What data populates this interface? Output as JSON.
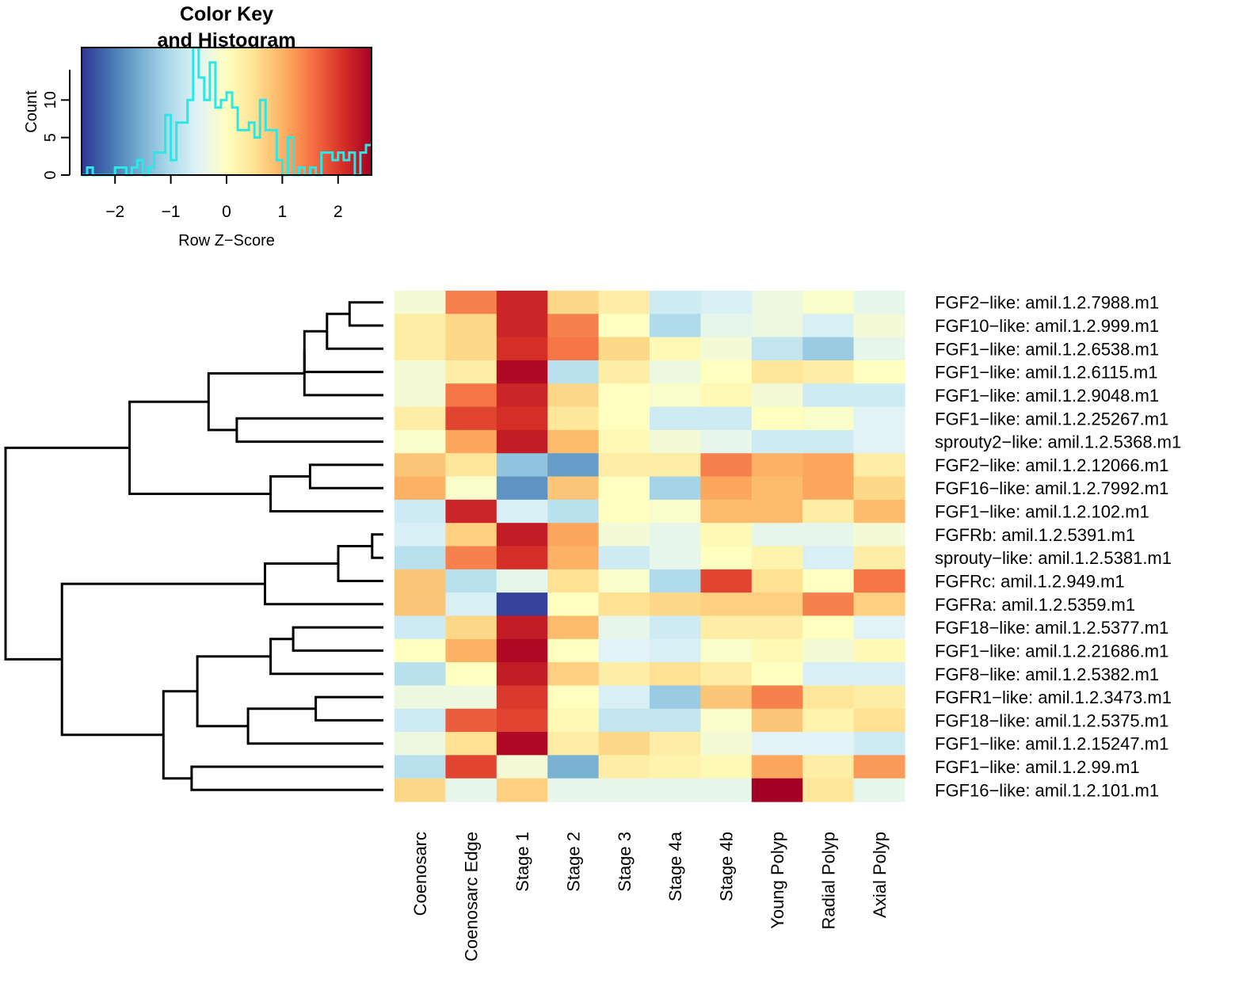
{
  "chart_data": {
    "type": "heatmap",
    "color_key": {
      "title_line1": "Color Key",
      "title_line2": "and Histogram",
      "xlabel": "Row Z−Score",
      "ylabel": "Count",
      "x_range": [
        -2.6,
        2.6
      ],
      "y_range": [
        0,
        17
      ],
      "x_ticks": [
        -2,
        -1,
        0,
        1,
        2
      ],
      "x_tick_labels": [
        "−2",
        "−1",
        "0",
        "1",
        "2"
      ],
      "y_ticks": [
        0,
        5,
        10
      ],
      "y_tick_labels": [
        "0",
        "5",
        "10"
      ],
      "histogram_color": "#2de6e6",
      "histogram": {
        "bin_edges": [
          -2.6,
          -2.5,
          -2.4,
          -2.3,
          -2.2,
          -2.1,
          -2.0,
          -1.9,
          -1.8,
          -1.7,
          -1.6,
          -1.5,
          -1.4,
          -1.3,
          -1.2,
          -1.1,
          -1.0,
          -0.9,
          -0.8,
          -0.7,
          -0.6,
          -0.5,
          -0.4,
          -0.3,
          -0.2,
          -0.1,
          0.0,
          0.1,
          0.2,
          0.3,
          0.4,
          0.5,
          0.6,
          0.7,
          0.8,
          0.9,
          1.0,
          1.1,
          1.2,
          1.3,
          1.4,
          1.5,
          1.6,
          1.7,
          1.8,
          1.9,
          2.0,
          2.1,
          2.2,
          2.3,
          2.4,
          2.5,
          2.6
        ],
        "counts": [
          0,
          1,
          0,
          0,
          0,
          0,
          1,
          1,
          0,
          1,
          2,
          0,
          1,
          3,
          3,
          8,
          2,
          7,
          7,
          10,
          17,
          13,
          10,
          15,
          9,
          10,
          11,
          9,
          6,
          6,
          7,
          5,
          10,
          6,
          6,
          2,
          0,
          5,
          0,
          1,
          0,
          1,
          0,
          3,
          3,
          2,
          3,
          2,
          3,
          0,
          3,
          4
        ]
      }
    },
    "columns": [
      "Coenosarc",
      "Coenosarc Edge",
      "Stage 1",
      "Stage 2",
      "Stage 3",
      "Stage 4a",
      "Stage 4b",
      "Young Polyp",
      "Radial Polyp",
      "Axial Polyp"
    ],
    "rows": [
      "FGF2−like: amil.1.2.7988.m1",
      "FGF10−like: amil.1.2.999.m1",
      "FGF1−like: amil.1.2.6538.m1",
      "FGF1−like: amil.1.2.6115.m1",
      "FGF1−like: amil.1.2.9048.m1",
      "FGF1−like: amil.1.2.25267.m1",
      "sprouty2−like: amil.1.2.5368.m1",
      "FGF2−like: amil.1.2.12066.m1",
      "FGF16−like: amil.1.2.7992.m1",
      "FGF1−like: amil.1.2.102.m1",
      "FGFRb: amil.1.2.5391.m1",
      "sprouty−like: amil.1.2.5381.m1",
      "FGFRc: amil.1.2.949.m1",
      "FGFRa: amil.1.2.5359.m1",
      "FGF18−like: amil.1.2.5377.m1",
      "FGF1−like: amil.1.2.21686.m1",
      "FGF8−like: amil.1.2.5382.m1",
      "FGFR1−like: amil.1.2.3473.m1",
      "FGF18−like: amil.1.2.5375.m1",
      "FGF1−like: amil.1.2.15247.m1",
      "FGF1−like: amil.1.2.99.m1",
      "FGF16−like: amil.1.2.101.m1"
    ],
    "z_scores": [
      [
        -0.2,
        1.4,
        2.2,
        0.6,
        0.3,
        -0.7,
        -0.6,
        -0.3,
        -0.1,
        -0.4
      ],
      [
        0.3,
        0.6,
        2.2,
        1.4,
        0.0,
        -1.0,
        -0.4,
        -0.3,
        -0.6,
        -0.2
      ],
      [
        0.3,
        0.6,
        2.1,
        1.5,
        0.6,
        0.1,
        -0.2,
        -0.8,
        -1.2,
        -0.4
      ],
      [
        -0.2,
        0.3,
        2.5,
        -0.9,
        0.3,
        -0.3,
        0.0,
        0.4,
        0.3,
        0.0
      ],
      [
        -0.2,
        1.5,
        2.2,
        0.6,
        0.0,
        -0.1,
        0.1,
        -0.2,
        -0.7,
        -0.7
      ],
      [
        0.3,
        1.9,
        2.1,
        0.4,
        0.0,
        -0.7,
        -0.7,
        0.0,
        -0.1,
        -0.5
      ],
      [
        -0.1,
        1.1,
        2.3,
        0.9,
        0.1,
        -0.2,
        -0.4,
        -0.7,
        -0.7,
        -0.5
      ],
      [
        0.8,
        0.4,
        -1.3,
        -1.7,
        0.3,
        0.3,
        1.4,
        1.0,
        1.1,
        0.3
      ],
      [
        1.0,
        -0.1,
        -1.8,
        0.8,
        0.0,
        -1.1,
        1.1,
        0.9,
        1.1,
        0.6
      ],
      [
        -0.7,
        2.2,
        -0.6,
        -0.9,
        0.0,
        -0.1,
        0.9,
        0.9,
        0.3,
        0.9
      ],
      [
        -0.6,
        0.7,
        2.3,
        1.1,
        -0.2,
        -0.4,
        0.1,
        -0.4,
        -0.4,
        -0.2
      ],
      [
        -0.9,
        1.4,
        2.1,
        1.0,
        -0.7,
        -0.4,
        0.0,
        0.2,
        -0.6,
        0.3
      ],
      [
        0.8,
        -0.9,
        -0.4,
        0.5,
        -0.1,
        -1.0,
        1.9,
        0.5,
        0.0,
        1.5
      ],
      [
        0.8,
        -0.6,
        -2.5,
        0.0,
        0.5,
        0.6,
        0.7,
        0.7,
        1.4,
        0.7
      ],
      [
        -0.7,
        0.6,
        2.3,
        0.9,
        -0.4,
        -0.7,
        0.3,
        0.3,
        0.0,
        -0.5
      ],
      [
        0.0,
        1.0,
        2.5,
        0.0,
        -0.5,
        -0.6,
        -0.1,
        0.1,
        -0.2,
        0.1
      ],
      [
        -0.9,
        0.0,
        2.3,
        0.7,
        0.3,
        0.5,
        0.3,
        0.0,
        -0.6,
        -0.6
      ],
      [
        -0.3,
        -0.3,
        2.0,
        0.0,
        -0.6,
        -1.2,
        0.8,
        1.4,
        0.4,
        0.3
      ],
      [
        -0.7,
        1.7,
        1.9,
        0.1,
        -0.8,
        -0.8,
        -0.1,
        0.8,
        0.2,
        0.5
      ],
      [
        -0.3,
        0.5,
        2.5,
        0.3,
        0.6,
        0.3,
        -0.2,
        -0.5,
        -0.5,
        -0.7
      ],
      [
        -0.9,
        1.9,
        -0.2,
        -1.5,
        0.3,
        0.2,
        0.1,
        1.1,
        0.3,
        1.2
      ],
      [
        0.6,
        -0.4,
        0.7,
        -0.4,
        -0.4,
        -0.4,
        -0.4,
        2.6,
        0.4,
        -0.4
      ]
    ],
    "row_dendrogram": {
      "merges": [
        [
          -1,
          -2
        ],
        [
          1,
          -3
        ],
        [
          2,
          -4
        ],
        [
          3,
          -5
        ],
        [
          -6,
          -7
        ],
        [
          4,
          5
        ],
        [
          -8,
          -9
        ],
        [
          7,
          -10
        ],
        [
          6,
          8
        ],
        [
          -11,
          -12
        ],
        [
          10,
          -13
        ],
        [
          11,
          -14
        ],
        [
          -15,
          -16
        ],
        [
          13,
          -17
        ],
        [
          -18,
          -19
        ],
        [
          15,
          -20
        ],
        [
          14,
          16
        ],
        [
          -21,
          -22
        ],
        [
          17,
          18
        ],
        [
          12,
          19
        ],
        [
          9,
          20
        ]
      ],
      "heights": [
        0.6,
        1.0,
        1.4,
        1.4,
        2.6,
        3.1,
        1.3,
        2.0,
        4.5,
        0.2,
        0.8,
        2.1,
        1.6,
        2.0,
        1.2,
        2.4,
        3.3,
        3.4,
        3.9,
        5.7,
        6.7
      ]
    },
    "colors": {
      "low": "#313695",
      "mid": "#ffffbf",
      "high": "#a50026",
      "palette": [
        "#313695",
        "#4575b4",
        "#74add1",
        "#abd9e9",
        "#e0f3f8",
        "#ffffbf",
        "#fee090",
        "#fdae61",
        "#f46d43",
        "#d73027",
        "#a50026"
      ]
    }
  }
}
